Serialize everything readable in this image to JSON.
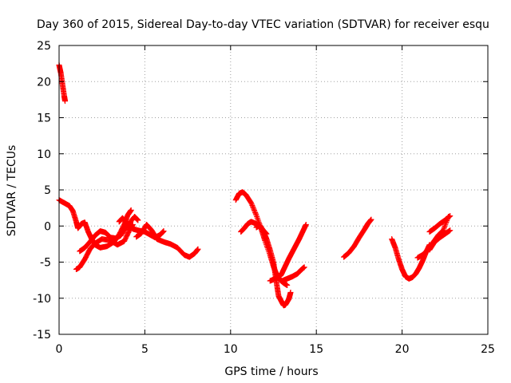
{
  "chart_data": {
    "type": "scatter",
    "title": "Day 360 of 2015, Sidereal Day-to-day VTEC variation (SDTVAR) for receiver esqu",
    "xlabel": "GPS time / hours",
    "ylabel": "SDTVAR / TECUs",
    "xlim": [
      0,
      25
    ],
    "ylim": [
      -15,
      25
    ],
    "x_ticks": [
      0,
      5,
      10,
      15,
      20,
      25
    ],
    "y_ticks": [
      -15,
      -10,
      -5,
      0,
      5,
      10,
      15,
      20,
      25
    ],
    "grid": true,
    "marker": "+",
    "series": [
      {
        "name": "SDTVAR",
        "color": "#ff0000",
        "tracks": [
          [
            [
              0.0,
              22.3
            ],
            [
              0.1,
              21.2
            ],
            [
              0.2,
              19.6
            ],
            [
              0.3,
              18.0
            ],
            [
              0.35,
              17.3
            ]
          ],
          [
            [
              0.0,
              3.6
            ],
            [
              0.3,
              3.2
            ],
            [
              0.6,
              2.8
            ],
            [
              0.8,
              2.1
            ],
            [
              1.0,
              0.6
            ],
            [
              1.1,
              -0.3
            ],
            [
              1.3,
              0.3
            ],
            [
              1.5,
              0.5
            ],
            [
              1.7,
              -0.8
            ],
            [
              1.9,
              -1.8
            ],
            [
              2.1,
              -2.6
            ],
            [
              2.4,
              -3.0
            ],
            [
              2.8,
              -2.8
            ],
            [
              3.2,
              -2.2
            ],
            [
              3.5,
              -1.2
            ],
            [
              3.8,
              0.2
            ],
            [
              4.0,
              1.5
            ],
            [
              4.2,
              2.2
            ]
          ],
          [
            [
              1.0,
              -6.0
            ],
            [
              1.2,
              -5.7
            ],
            [
              1.5,
              -4.6
            ],
            [
              1.8,
              -3.2
            ],
            [
              2.1,
              -2.4
            ],
            [
              2.5,
              -1.8
            ],
            [
              3.0,
              -2.0
            ],
            [
              3.4,
              -2.6
            ],
            [
              3.8,
              -2.1
            ],
            [
              4.1,
              -0.6
            ],
            [
              4.3,
              0.2
            ]
          ],
          [
            [
              1.2,
              -3.5
            ],
            [
              1.5,
              -3.0
            ],
            [
              1.8,
              -2.2
            ],
            [
              2.1,
              -1.3
            ],
            [
              2.4,
              -0.7
            ],
            [
              2.7,
              -0.9
            ],
            [
              3.0,
              -1.6
            ],
            [
              3.3,
              -1.7
            ],
            [
              3.6,
              -1.3
            ],
            [
              4.0,
              0.1
            ],
            [
              4.4,
              1.3
            ],
            [
              4.6,
              0.8
            ]
          ],
          [
            [
              3.5,
              0.6
            ],
            [
              3.7,
              1.1
            ],
            [
              4.0,
              0.3
            ],
            [
              4.3,
              -0.4
            ],
            [
              4.6,
              -0.6
            ],
            [
              5.0,
              -0.8
            ],
            [
              5.3,
              -1.2
            ],
            [
              5.6,
              -1.6
            ],
            [
              5.9,
              -1.2
            ],
            [
              6.1,
              -0.7
            ]
          ],
          [
            [
              4.5,
              -1.5
            ],
            [
              4.8,
              -1.0
            ],
            [
              5.1,
              0.2
            ],
            [
              5.4,
              -0.6
            ],
            [
              5.7,
              -1.8
            ],
            [
              6.1,
              -2.2
            ],
            [
              6.5,
              -2.5
            ],
            [
              6.9,
              -3.0
            ],
            [
              7.3,
              -4.0
            ],
            [
              7.6,
              -4.3
            ],
            [
              7.9,
              -3.8
            ],
            [
              8.1,
              -3.2
            ]
          ],
          [
            [
              10.3,
              3.6
            ],
            [
              10.5,
              4.5
            ],
            [
              10.7,
              4.7
            ],
            [
              10.9,
              4.3
            ],
            [
              11.2,
              3.2
            ],
            [
              11.5,
              1.5
            ],
            [
              11.8,
              -0.5
            ],
            [
              12.0,
              -2.0
            ],
            [
              12.3,
              -4.0
            ],
            [
              12.5,
              -5.6
            ],
            [
              12.7,
              -6.8
            ],
            [
              12.9,
              -7.5
            ],
            [
              13.1,
              -7.9
            ],
            [
              13.3,
              -8.2
            ]
          ],
          [
            [
              11.5,
              -0.2
            ],
            [
              11.7,
              0.1
            ],
            [
              11.9,
              -0.6
            ],
            [
              12.1,
              -1.8
            ],
            [
              12.3,
              -3.3
            ],
            [
              12.5,
              -5.0
            ],
            [
              12.6,
              -6.6
            ],
            [
              12.7,
              -8.2
            ],
            [
              12.8,
              -9.7
            ],
            [
              13.0,
              -10.6
            ],
            [
              13.1,
              -11.0
            ],
            [
              13.2,
              -10.9
            ],
            [
              13.4,
              -10.1
            ],
            [
              13.5,
              -9.2
            ]
          ],
          [
            [
              12.3,
              -7.6
            ],
            [
              12.6,
              -7.3
            ],
            [
              12.9,
              -6.9
            ],
            [
              13.0,
              -6.5
            ],
            [
              13.2,
              -5.5
            ],
            [
              13.4,
              -4.5
            ],
            [
              13.6,
              -3.6
            ],
            [
              13.8,
              -2.7
            ],
            [
              14.0,
              -1.8
            ],
            [
              14.2,
              -0.8
            ],
            [
              14.4,
              0.2
            ]
          ],
          [
            [
              10.6,
              -0.8
            ],
            [
              10.8,
              -0.3
            ],
            [
              11.0,
              0.3
            ],
            [
              11.2,
              0.6
            ],
            [
              11.5,
              0.3
            ],
            [
              11.8,
              -0.3
            ],
            [
              12.1,
              -1.1
            ]
          ],
          [
            [
              13.0,
              -7.6
            ],
            [
              13.3,
              -7.3
            ],
            [
              13.6,
              -7.0
            ],
            [
              13.9,
              -6.6
            ],
            [
              14.1,
              -6.1
            ],
            [
              14.3,
              -5.7
            ]
          ],
          [
            [
              16.6,
              -4.3
            ],
            [
              16.9,
              -3.7
            ],
            [
              17.2,
              -2.8
            ],
            [
              17.5,
              -1.6
            ],
            [
              17.8,
              -0.5
            ],
            [
              18.0,
              0.3
            ],
            [
              18.2,
              0.9
            ]
          ],
          [
            [
              19.4,
              -1.8
            ],
            [
              19.6,
              -3.0
            ],
            [
              19.8,
              -4.6
            ],
            [
              20.0,
              -6.0
            ],
            [
              20.2,
              -7.0
            ],
            [
              20.4,
              -7.3
            ],
            [
              20.6,
              -7.1
            ],
            [
              20.8,
              -6.6
            ],
            [
              21.0,
              -5.8
            ],
            [
              21.2,
              -4.8
            ],
            [
              21.4,
              -3.6
            ],
            [
              21.6,
              -2.6
            ]
          ],
          [
            [
              20.9,
              -4.4
            ],
            [
              21.2,
              -4.0
            ],
            [
              21.5,
              -3.3
            ],
            [
              21.8,
              -2.3
            ],
            [
              22.1,
              -1.3
            ],
            [
              22.4,
              -0.6
            ],
            [
              22.7,
              1.3
            ]
          ],
          [
            [
              21.6,
              -3.3
            ],
            [
              21.9,
              -2.2
            ],
            [
              22.2,
              -1.6
            ],
            [
              22.5,
              -1.1
            ],
            [
              22.8,
              -0.6
            ]
          ],
          [
            [
              21.6,
              -0.8
            ],
            [
              21.9,
              -0.3
            ],
            [
              22.2,
              0.3
            ],
            [
              22.5,
              0.8
            ],
            [
              22.8,
              1.4
            ]
          ]
        ]
      }
    ]
  }
}
